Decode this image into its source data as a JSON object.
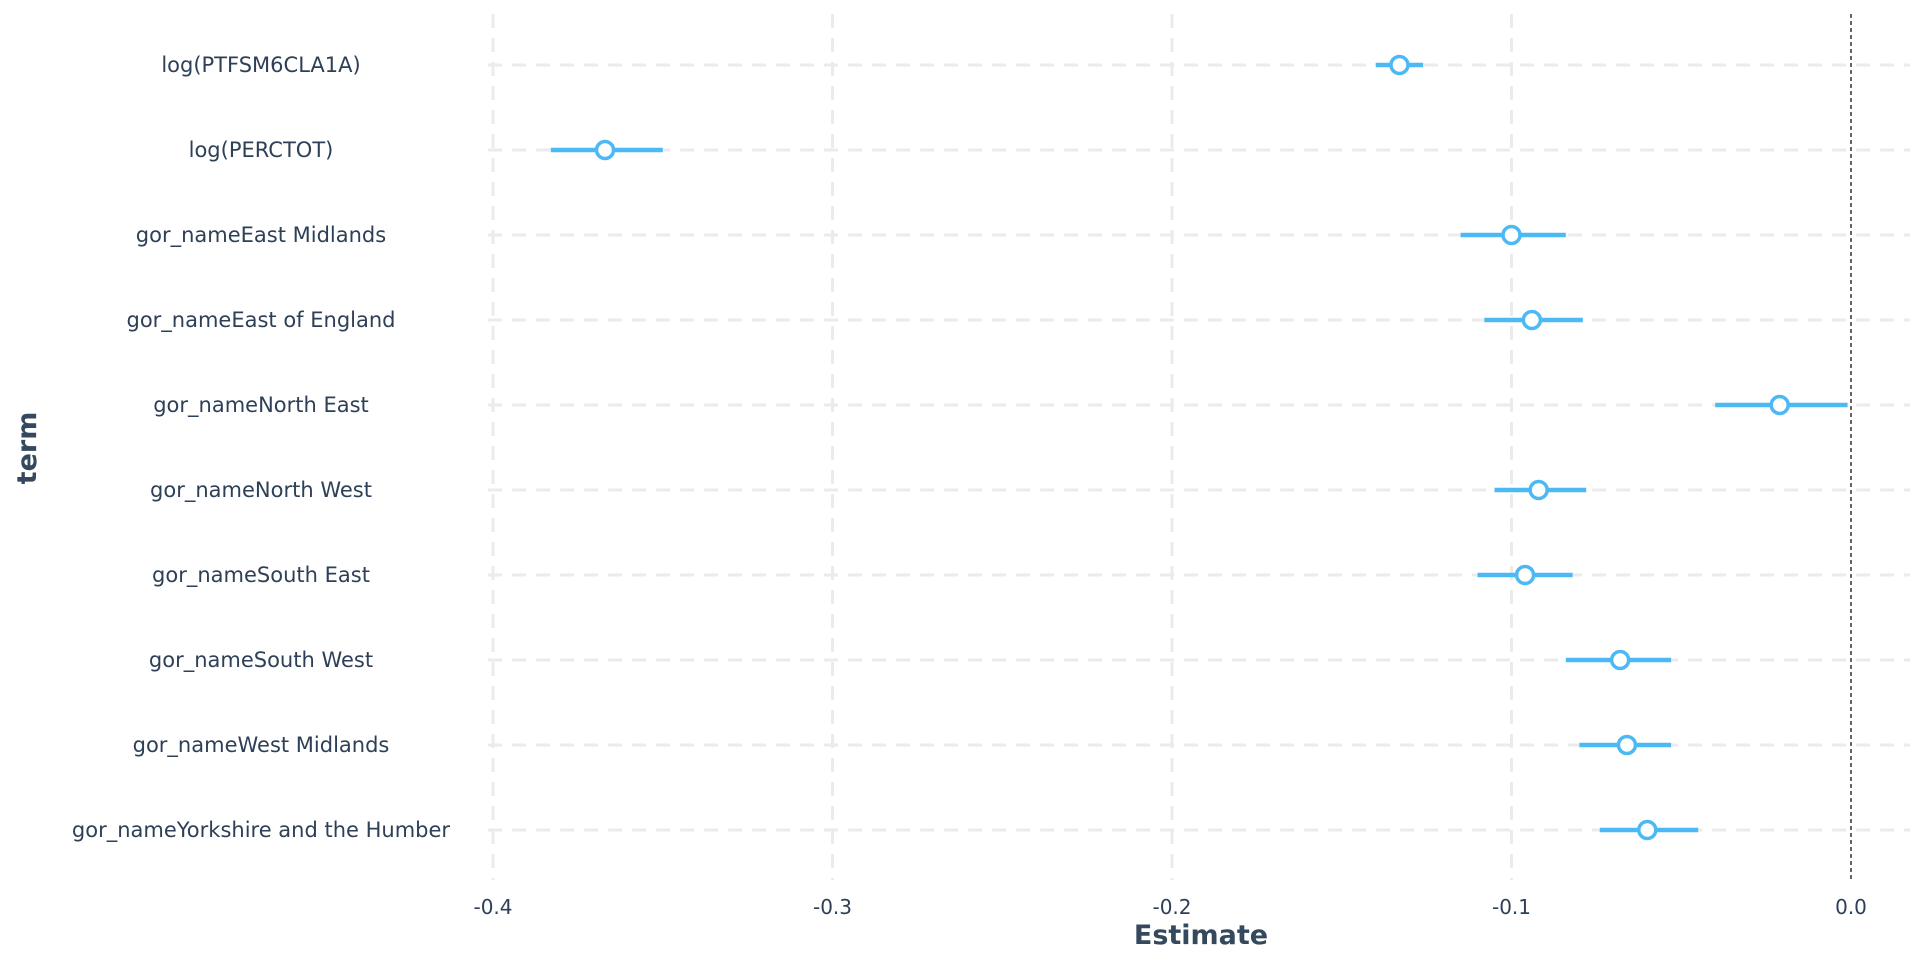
{
  "chart_data": {
    "type": "scatter",
    "subtype": "coefficient-plot",
    "xlabel": "Estimate",
    "ylabel": "term",
    "xlim": [
      -0.42,
      0.02
    ],
    "x_ticks": [
      -0.4,
      -0.3,
      -0.2,
      -0.1,
      0.0
    ],
    "x_tick_labels": [
      "-0.4",
      "-0.3",
      "-0.2",
      "-0.1",
      "0.0"
    ],
    "reference_line": 0.0,
    "grid": true,
    "colors": {
      "series": "#4cb9f5",
      "text": "#2e4057",
      "grid": "#ebebeb"
    },
    "terms": [
      {
        "term": "log(PTFSM6CLA1A)",
        "estimate": -0.133,
        "low": -0.14,
        "high": -0.126
      },
      {
        "term": "log(PERCTOT)",
        "estimate": -0.367,
        "low": -0.383,
        "high": -0.35
      },
      {
        "term": "gor_nameEast Midlands",
        "estimate": -0.1,
        "low": -0.115,
        "high": -0.084
      },
      {
        "term": "gor_nameEast of England",
        "estimate": -0.094,
        "low": -0.108,
        "high": -0.079
      },
      {
        "term": "gor_nameNorth East",
        "estimate": -0.021,
        "low": -0.04,
        "high": -0.001
      },
      {
        "term": "gor_nameNorth West",
        "estimate": -0.092,
        "low": -0.105,
        "high": -0.078
      },
      {
        "term": "gor_nameSouth East",
        "estimate": -0.096,
        "low": -0.11,
        "high": -0.082
      },
      {
        "term": "gor_nameSouth West",
        "estimate": -0.068,
        "low": -0.084,
        "high": -0.053
      },
      {
        "term": "gor_nameWest Midlands",
        "estimate": -0.066,
        "low": -0.08,
        "high": -0.053
      },
      {
        "term": "gor_nameYorkshire and the Humber",
        "estimate": -0.06,
        "low": -0.074,
        "high": -0.045
      }
    ]
  }
}
